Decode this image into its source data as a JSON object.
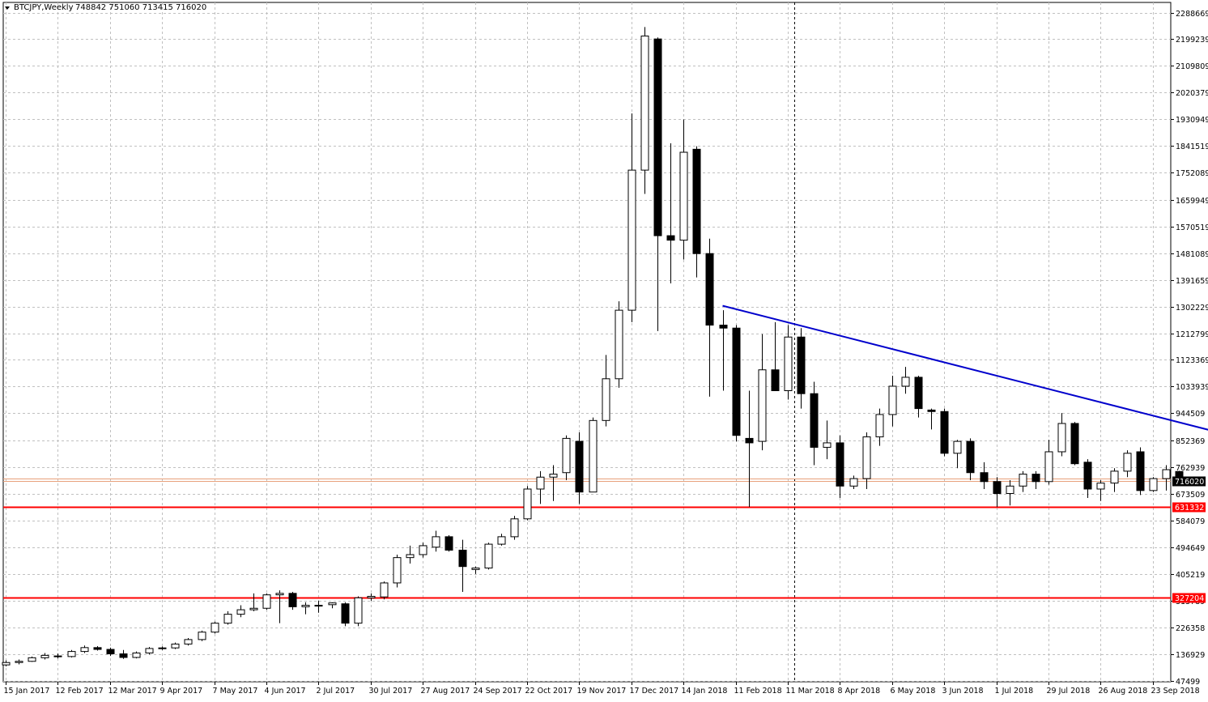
{
  "header": {
    "symbol_timeframe": "BTCJPY,Weekly",
    "ohlc": "748842 751060 713415 716020",
    "menu_icon": "triangle-down-icon"
  },
  "colors": {
    "background": "#ffffff",
    "grid": "#c0c0c0",
    "candle_outline": "#000000",
    "bull_fill": "#ffffff",
    "bear_fill": "#000000",
    "trendline": "#0000cc",
    "support_line": "#ff0000",
    "current_price_line": "#e8a07a",
    "price_label_bg": "#000000"
  },
  "chart_data": {
    "type": "candlestick",
    "title": "BTCJPY,Weekly",
    "y_ticks": [
      2288669,
      2199239,
      2109809,
      2020379,
      1930949,
      1841519,
      1752089,
      1659949,
      1570519,
      1481089,
      1391659,
      1302229,
      1212799,
      1123369,
      1033939,
      944509,
      852369,
      762939,
      673509,
      584079,
      494649,
      405219,
      315789,
      226358,
      136929,
      47499
    ],
    "y_tick_labels": [
      "2288669",
      "2199239",
      "2109809",
      "2020379",
      "1930949",
      "1841519",
      "1752089",
      "1659949",
      "1570519",
      "1481089",
      "1391659",
      "1302229",
      "1212799",
      "1123369",
      "1033939",
      "944509",
      "852369",
      "762939",
      "673509",
      "584079",
      "494649",
      "405219",
      "315789",
      "226358",
      "136929",
      "47499"
    ],
    "x_tick_labels": [
      "15 Jan 2017",
      "12 Feb 2017",
      "12 Mar 2017",
      "9 Apr 2017",
      "7 May 2017",
      "4 Jun 2017",
      "2 Jul 2017",
      "30 Jul 2017",
      "27 Aug 2017",
      "24 Sep 2017",
      "22 Oct 2017",
      "19 Nov 2017",
      "17 Dec 2017",
      "14 Jan 2018",
      "11 Feb 2018",
      "11 Mar 2018",
      "8 Apr 2018",
      "6 May 2018",
      "3 Jun 2018",
      "1 Jul 2018",
      "29 Jul 2018",
      "26 Aug 2018",
      "23 Sep 2018"
    ],
    "ylim": [
      47499,
      2288669
    ],
    "candles": [
      {
        "o": 100000,
        "h": 115000,
        "l": 95000,
        "c": 108000
      },
      {
        "o": 108000,
        "h": 118000,
        "l": 102000,
        "c": 112000
      },
      {
        "o": 112000,
        "h": 128000,
        "l": 110000,
        "c": 124000
      },
      {
        "o": 124000,
        "h": 140000,
        "l": 118000,
        "c": 132000
      },
      {
        "o": 130000,
        "h": 138000,
        "l": 122000,
        "c": 128000
      },
      {
        "o": 128000,
        "h": 150000,
        "l": 125000,
        "c": 145000
      },
      {
        "o": 145000,
        "h": 165000,
        "l": 140000,
        "c": 158000
      },
      {
        "o": 158000,
        "h": 163000,
        "l": 148000,
        "c": 152000
      },
      {
        "o": 152000,
        "h": 158000,
        "l": 130000,
        "c": 137000
      },
      {
        "o": 137000,
        "h": 150000,
        "l": 120000,
        "c": 125000
      },
      {
        "o": 125000,
        "h": 145000,
        "l": 122000,
        "c": 140000
      },
      {
        "o": 140000,
        "h": 160000,
        "l": 135000,
        "c": 155000
      },
      {
        "o": 155000,
        "h": 162000,
        "l": 150000,
        "c": 157000
      },
      {
        "o": 157000,
        "h": 175000,
        "l": 153000,
        "c": 170000
      },
      {
        "o": 170000,
        "h": 190000,
        "l": 165000,
        "c": 185000
      },
      {
        "o": 185000,
        "h": 215000,
        "l": 180000,
        "c": 210000
      },
      {
        "o": 210000,
        "h": 245000,
        "l": 205000,
        "c": 240000
      },
      {
        "o": 240000,
        "h": 280000,
        "l": 235000,
        "c": 270000
      },
      {
        "o": 270000,
        "h": 300000,
        "l": 260000,
        "c": 285000
      },
      {
        "o": 285000,
        "h": 340000,
        "l": 280000,
        "c": 290000
      },
      {
        "o": 290000,
        "h": 340000,
        "l": 285000,
        "c": 335000
      },
      {
        "o": 335000,
        "h": 350000,
        "l": 240000,
        "c": 340000
      },
      {
        "o": 340000,
        "h": 345000,
        "l": 285000,
        "c": 295000
      },
      {
        "o": 295000,
        "h": 310000,
        "l": 270000,
        "c": 300000
      },
      {
        "o": 300000,
        "h": 315000,
        "l": 275000,
        "c": 298000
      },
      {
        "o": 302000,
        "h": 310000,
        "l": 290000,
        "c": 308000
      },
      {
        "o": 305000,
        "h": 310000,
        "l": 230000,
        "c": 240000
      },
      {
        "o": 240000,
        "h": 330000,
        "l": 230000,
        "c": 325000
      },
      {
        "o": 325000,
        "h": 340000,
        "l": 315000,
        "c": 330000
      },
      {
        "o": 328000,
        "h": 380000,
        "l": 320000,
        "c": 375000
      },
      {
        "o": 375000,
        "h": 470000,
        "l": 360000,
        "c": 460000
      },
      {
        "o": 460000,
        "h": 500000,
        "l": 440000,
        "c": 470000
      },
      {
        "o": 470000,
        "h": 510000,
        "l": 460000,
        "c": 500000
      },
      {
        "o": 495000,
        "h": 550000,
        "l": 480000,
        "c": 530000
      },
      {
        "o": 530000,
        "h": 535000,
        "l": 480000,
        "c": 485000
      },
      {
        "o": 485000,
        "h": 520000,
        "l": 345000,
        "c": 430000
      },
      {
        "o": 420000,
        "h": 430000,
        "l": 405000,
        "c": 425000
      },
      {
        "o": 425000,
        "h": 510000,
        "l": 420000,
        "c": 505000
      },
      {
        "o": 505000,
        "h": 540000,
        "l": 500000,
        "c": 530000
      },
      {
        "o": 530000,
        "h": 600000,
        "l": 520000,
        "c": 590000
      },
      {
        "o": 590000,
        "h": 700000,
        "l": 585000,
        "c": 690000
      },
      {
        "o": 690000,
        "h": 750000,
        "l": 640000,
        "c": 730000
      },
      {
        "o": 730000,
        "h": 770000,
        "l": 650000,
        "c": 740000
      },
      {
        "o": 745000,
        "h": 870000,
        "l": 720000,
        "c": 860000
      },
      {
        "o": 850000,
        "h": 880000,
        "l": 640000,
        "c": 680000
      },
      {
        "o": 680000,
        "h": 930000,
        "l": 680000,
        "c": 920000
      },
      {
        "o": 920000,
        "h": 1140000,
        "l": 900000,
        "c": 1060000
      },
      {
        "o": 1060000,
        "h": 1320000,
        "l": 1030000,
        "c": 1290000
      },
      {
        "o": 1290000,
        "h": 1950000,
        "l": 1250000,
        "c": 1760000
      },
      {
        "o": 1760000,
        "h": 2240000,
        "l": 1680000,
        "c": 2210000
      },
      {
        "o": 2200000,
        "h": 2205000,
        "l": 1220000,
        "c": 1540000
      },
      {
        "o": 1540000,
        "h": 1850000,
        "l": 1380000,
        "c": 1525000
      },
      {
        "o": 1525000,
        "h": 1930000,
        "l": 1460000,
        "c": 1820000
      },
      {
        "o": 1830000,
        "h": 1840000,
        "l": 1400000,
        "c": 1480000
      },
      {
        "o": 1480000,
        "h": 1530000,
        "l": 1000000,
        "c": 1240000
      },
      {
        "o": 1240000,
        "h": 1290000,
        "l": 1020000,
        "c": 1230000
      },
      {
        "o": 1230000,
        "h": 1240000,
        "l": 850000,
        "c": 870000
      },
      {
        "o": 860000,
        "h": 1020000,
        "l": 630000,
        "c": 845000
      },
      {
        "o": 850000,
        "h": 1210000,
        "l": 820000,
        "c": 1090000
      },
      {
        "o": 1090000,
        "h": 1250000,
        "l": 1020000,
        "c": 1020000
      },
      {
        "o": 1020000,
        "h": 1240000,
        "l": 990000,
        "c": 1200000
      },
      {
        "o": 1200000,
        "h": 1230000,
        "l": 960000,
        "c": 1010000
      },
      {
        "o": 1010000,
        "h": 1050000,
        "l": 770000,
        "c": 830000
      },
      {
        "o": 830000,
        "h": 920000,
        "l": 790000,
        "c": 845000
      },
      {
        "o": 845000,
        "h": 870000,
        "l": 660000,
        "c": 700000
      },
      {
        "o": 700000,
        "h": 735000,
        "l": 690000,
        "c": 725000
      },
      {
        "o": 725000,
        "h": 880000,
        "l": 690000,
        "c": 865000
      },
      {
        "o": 865000,
        "h": 960000,
        "l": 835000,
        "c": 940000
      },
      {
        "o": 940000,
        "h": 1070000,
        "l": 900000,
        "c": 1035000
      },
      {
        "o": 1035000,
        "h": 1100000,
        "l": 1010000,
        "c": 1065000
      },
      {
        "o": 1065000,
        "h": 1070000,
        "l": 930000,
        "c": 960000
      },
      {
        "o": 955000,
        "h": 960000,
        "l": 890000,
        "c": 950000
      },
      {
        "o": 950000,
        "h": 960000,
        "l": 800000,
        "c": 810000
      },
      {
        "o": 810000,
        "h": 855000,
        "l": 760000,
        "c": 850000
      },
      {
        "o": 850000,
        "h": 860000,
        "l": 720000,
        "c": 745000
      },
      {
        "o": 745000,
        "h": 780000,
        "l": 690000,
        "c": 715000
      },
      {
        "o": 715000,
        "h": 730000,
        "l": 630000,
        "c": 675000
      },
      {
        "o": 675000,
        "h": 720000,
        "l": 635000,
        "c": 700000
      },
      {
        "o": 700000,
        "h": 750000,
        "l": 680000,
        "c": 740000
      },
      {
        "o": 740000,
        "h": 750000,
        "l": 690000,
        "c": 715000
      },
      {
        "o": 715000,
        "h": 855000,
        "l": 705000,
        "c": 815000
      },
      {
        "o": 815000,
        "h": 945000,
        "l": 800000,
        "c": 910000
      },
      {
        "o": 910000,
        "h": 915000,
        "l": 770000,
        "c": 775000
      },
      {
        "o": 780000,
        "h": 790000,
        "l": 660000,
        "c": 690000
      },
      {
        "o": 690000,
        "h": 720000,
        "l": 650000,
        "c": 710000
      },
      {
        "o": 710000,
        "h": 760000,
        "l": 680000,
        "c": 750000
      },
      {
        "o": 750000,
        "h": 820000,
        "l": 730000,
        "c": 810000
      },
      {
        "o": 815000,
        "h": 830000,
        "l": 670000,
        "c": 685000
      },
      {
        "o": 685000,
        "h": 730000,
        "l": 680000,
        "c": 725000
      },
      {
        "o": 725000,
        "h": 770000,
        "l": 685000,
        "c": 755000
      },
      {
        "o": 748842,
        "h": 751060,
        "l": 713415,
        "c": 716020
      }
    ],
    "horizontal_lines": [
      {
        "value": 631332,
        "label": "631332",
        "color": "#ff0000"
      },
      {
        "value": 327204,
        "label": "327204",
        "color": "#ff0000"
      }
    ],
    "current_price": {
      "value": 716020,
      "label": "716020"
    },
    "trendline": {
      "from_index": 55,
      "from_value": 1305000,
      "to_index": 102,
      "to_value": 780000,
      "color": "#0000cc"
    },
    "period_separator_index": 61,
    "grid": true
  }
}
